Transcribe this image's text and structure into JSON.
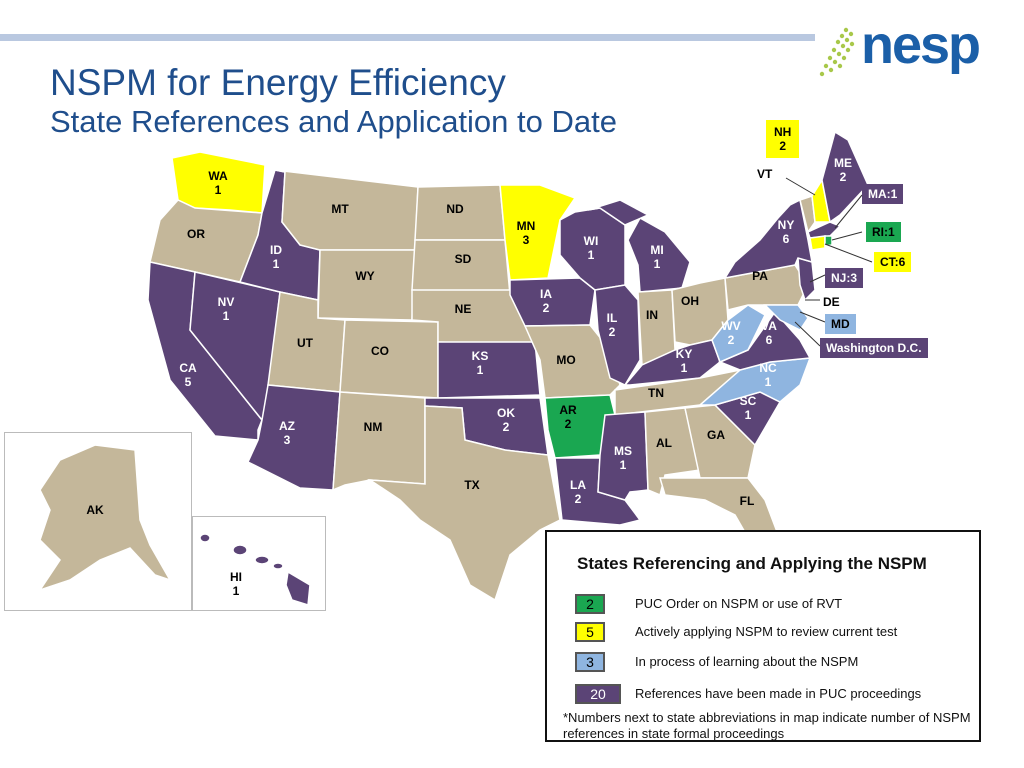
{
  "logo": {
    "text": "nesp"
  },
  "title": {
    "line1": "NSPM for Energy Efficiency",
    "line2": "State References and Application to Date"
  },
  "colors": {
    "purple": "#5b4476",
    "tan": "#c4b79a",
    "yellow": "#ffff00",
    "green": "#1aa751",
    "blue": "#8fb5e0"
  },
  "states": {
    "WA": {
      "abbr": "WA",
      "count": "1"
    },
    "OR": {
      "abbr": "OR",
      "count": ""
    },
    "CA": {
      "abbr": "CA",
      "count": "5"
    },
    "NV": {
      "abbr": "NV",
      "count": "1"
    },
    "ID": {
      "abbr": "ID",
      "count": "1"
    },
    "MT": {
      "abbr": "MT",
      "count": ""
    },
    "WY": {
      "abbr": "WY",
      "count": ""
    },
    "UT": {
      "abbr": "UT",
      "count": ""
    },
    "AZ": {
      "abbr": "AZ",
      "count": "3"
    },
    "CO": {
      "abbr": "CO",
      "count": ""
    },
    "NM": {
      "abbr": "NM",
      "count": ""
    },
    "ND": {
      "abbr": "ND",
      "count": ""
    },
    "SD": {
      "abbr": "SD",
      "count": ""
    },
    "NE": {
      "abbr": "NE",
      "count": ""
    },
    "KS": {
      "abbr": "KS",
      "count": "1"
    },
    "OK": {
      "abbr": "OK",
      "count": "2"
    },
    "TX": {
      "abbr": "TX",
      "count": ""
    },
    "MN": {
      "abbr": "MN",
      "count": "3"
    },
    "IA": {
      "abbr": "IA",
      "count": "2"
    },
    "MO": {
      "abbr": "MO",
      "count": ""
    },
    "AR": {
      "abbr": "AR",
      "count": "2"
    },
    "LA": {
      "abbr": "LA",
      "count": "2"
    },
    "WI": {
      "abbr": "WI",
      "count": "1"
    },
    "IL": {
      "abbr": "IL",
      "count": "2"
    },
    "MI": {
      "abbr": "MI",
      "count": "1"
    },
    "IN": {
      "abbr": "IN",
      "count": ""
    },
    "OH": {
      "abbr": "OH",
      "count": ""
    },
    "KY": {
      "abbr": "KY",
      "count": "1"
    },
    "TN": {
      "abbr": "TN",
      "count": ""
    },
    "MS": {
      "abbr": "MS",
      "count": "1"
    },
    "AL": {
      "abbr": "AL",
      "count": ""
    },
    "GA": {
      "abbr": "GA",
      "count": ""
    },
    "FL": {
      "abbr": "FL",
      "count": ""
    },
    "SC": {
      "abbr": "SC",
      "count": "1"
    },
    "NC": {
      "abbr": "NC",
      "count": "1"
    },
    "VA": {
      "abbr": "VA",
      "count": "6"
    },
    "WV": {
      "abbr": "WV",
      "count": "2"
    },
    "PA": {
      "abbr": "PA",
      "count": ""
    },
    "NY": {
      "abbr": "NY",
      "count": "6"
    },
    "VT": {
      "abbr": "VT",
      "count": ""
    },
    "NH": {
      "abbr": "NH",
      "count": "2"
    },
    "ME": {
      "abbr": "ME",
      "count": "2"
    },
    "AK": {
      "abbr": "AK",
      "count": ""
    },
    "HI": {
      "abbr": "HI",
      "count": "1"
    }
  },
  "callouts": {
    "ma": "MA:1",
    "ri": "RI:1",
    "ct": "CT:6",
    "nj": "NJ:3",
    "de": "DE",
    "md": "MD",
    "dc": "Washington D.C."
  },
  "legend": {
    "title": "States Referencing and Applying the NSPM",
    "items": [
      {
        "count": "2",
        "label": "PUC Order on NSPM or use of RVT",
        "color": "#1aa751"
      },
      {
        "count": "5",
        "label": "Actively applying NSPM to review current test",
        "color": "#ffff00"
      },
      {
        "count": "3",
        "label": "In process of learning about the NSPM",
        "color": "#8fb5e0"
      },
      {
        "count": "20",
        "label": "References have been made in PUC proceedings",
        "color": "#5b4476"
      }
    ],
    "footnote": "*Numbers next to state abbreviations in map indicate number of NSPM references in state formal proceedings"
  }
}
